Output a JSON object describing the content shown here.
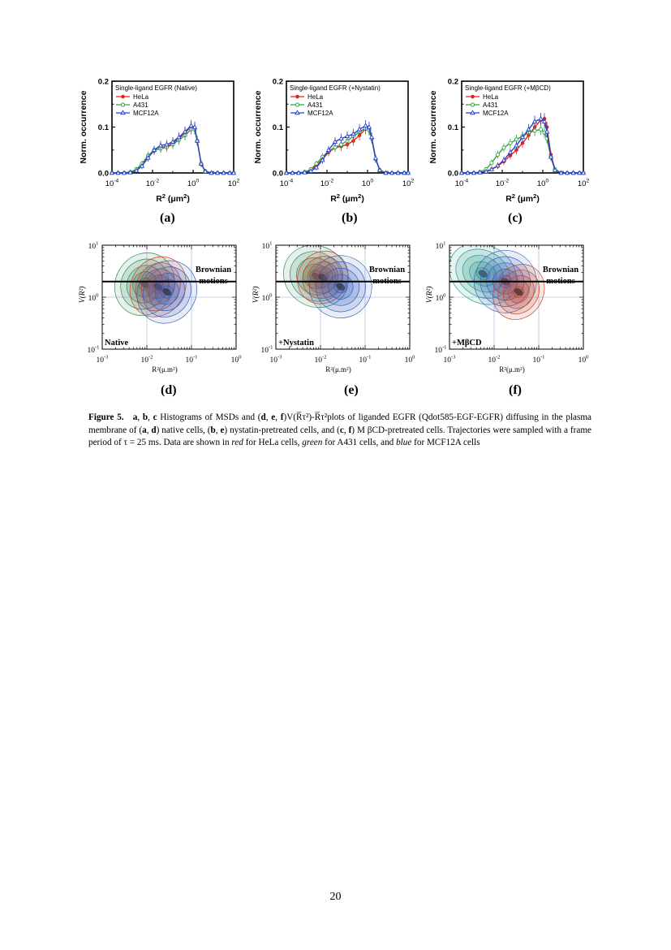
{
  "colors": {
    "hela": "#e0251f",
    "a431": "#2fa23a",
    "mcf12a": "#2840c8"
  },
  "histograms": [
    {
      "panel_label": "(a)",
      "legend_title": "Single-ligand EGFR (Native)"
    },
    {
      "panel_label": "(b)",
      "legend_title": "Single-ligand EGFR (+Nystatin)"
    },
    {
      "panel_label": "(c)",
      "legend_title": "Single-ligand EGFR (+MβCD)"
    }
  ],
  "legend_entries": [
    "HeLa",
    "A431",
    "MCF12A"
  ],
  "hist_axes": {
    "ylabel": "Norm. occurrence",
    "yticks": [
      "0.0",
      "0.1",
      "0.2"
    ],
    "xticks_base": "10",
    "xticks_exp": [
      "-4",
      "-2",
      "0",
      "2"
    ],
    "xlabel_main": "R",
    "xlabel_sup": "2",
    "xlabel_unit": " (μm",
    "xlabel_unit_sup": "2",
    "xlabel_close": ")"
  },
  "contours": [
    {
      "panel_label": "(d)",
      "condition_label": "Native"
    },
    {
      "panel_label": "(e)",
      "condition_label": "+Nystatin"
    },
    {
      "panel_label": "(f)",
      "condition_label": "+MβCD"
    }
  ],
  "contour_axes": {
    "annotation_line1": "Brownian",
    "annotation_line2": "motions",
    "ylabel": "V(R²)",
    "yticks_base": "10",
    "yticks_exp": [
      "-1",
      "0",
      "1"
    ],
    "xticks_base": "10",
    "xticks_exp": [
      "-3",
      "-2",
      "-1",
      "0"
    ],
    "xlabel": "R²(μ.m²)"
  },
  "chart_data": [
    {
      "type": "line",
      "x": [
        0.0001,
        0.0002,
        0.0004,
        0.0008,
        0.0016,
        0.003,
        0.006,
        0.012,
        0.025,
        0.05,
        0.1,
        0.2,
        0.4,
        0.8,
        1.2,
        1.6,
        2.5,
        4,
        8,
        16,
        32,
        64,
        100
      ],
      "series": [
        {
          "name": "HeLa",
          "values": [
            0,
            0,
            0,
            0.002,
            0.006,
            0.018,
            0.035,
            0.048,
            0.055,
            0.058,
            0.065,
            0.075,
            0.088,
            0.1,
            0.098,
            0.07,
            0.02,
            0.004,
            0,
            0,
            0,
            0,
            0
          ]
        },
        {
          "name": "A431",
          "values": [
            0,
            0,
            0,
            0.002,
            0.008,
            0.02,
            0.038,
            0.05,
            0.053,
            0.056,
            0.062,
            0.072,
            0.082,
            0.095,
            0.095,
            0.07,
            0.02,
            0.004,
            0,
            0,
            0,
            0,
            0
          ]
        },
        {
          "name": "MCF12A",
          "values": [
            0,
            0,
            0,
            0.001,
            0.005,
            0.015,
            0.033,
            0.05,
            0.06,
            0.062,
            0.068,
            0.078,
            0.09,
            0.103,
            0.1,
            0.07,
            0.02,
            0.003,
            0,
            0,
            0,
            0,
            0
          ]
        }
      ],
      "xlabel": "R² (μm²)",
      "ylabel": "Norm. occurrence",
      "ylim": [
        0,
        0.2
      ],
      "xscale": "log",
      "xlim": [
        0.0001,
        100
      ]
    },
    {
      "type": "line",
      "x": [
        0.0001,
        0.0002,
        0.0004,
        0.0008,
        0.0016,
        0.003,
        0.006,
        0.012,
        0.025,
        0.05,
        0.1,
        0.2,
        0.4,
        0.8,
        1.2,
        1.6,
        2.5,
        4,
        8,
        16,
        32,
        64,
        100
      ],
      "series": [
        {
          "name": "HeLa",
          "values": [
            0,
            0,
            0,
            0.002,
            0.006,
            0.016,
            0.03,
            0.045,
            0.055,
            0.058,
            0.062,
            0.07,
            0.082,
            0.096,
            0.093,
            0.075,
            0.03,
            0.006,
            0,
            0,
            0,
            0,
            0
          ]
        },
        {
          "name": "A431",
          "values": [
            0,
            0,
            0,
            0.002,
            0.008,
            0.02,
            0.035,
            0.048,
            0.056,
            0.062,
            0.07,
            0.08,
            0.09,
            0.097,
            0.093,
            0.075,
            0.03,
            0.006,
            0,
            0,
            0,
            0,
            0
          ]
        },
        {
          "name": "MCF12A",
          "values": [
            0,
            0,
            0,
            0.001,
            0.004,
            0.012,
            0.028,
            0.05,
            0.068,
            0.075,
            0.08,
            0.085,
            0.095,
            0.103,
            0.1,
            0.078,
            0.032,
            0.006,
            0,
            0,
            0,
            0,
            0
          ]
        }
      ],
      "xlabel": "R² (μm²)",
      "ylabel": "Norm. occurrence",
      "ylim": [
        0,
        0.2
      ],
      "xscale": "log",
      "xlim": [
        0.0001,
        100
      ]
    },
    {
      "type": "line",
      "x": [
        0.0001,
        0.0002,
        0.0004,
        0.0008,
        0.0016,
        0.003,
        0.006,
        0.012,
        0.025,
        0.05,
        0.1,
        0.2,
        0.4,
        0.8,
        1.2,
        1.6,
        2.5,
        4,
        8,
        16,
        32,
        64,
        100
      ],
      "series": [
        {
          "name": "HeLa",
          "values": [
            0,
            0,
            0,
            0.001,
            0.003,
            0.008,
            0.015,
            0.025,
            0.038,
            0.05,
            0.065,
            0.082,
            0.1,
            0.115,
            0.118,
            0.1,
            0.04,
            0.008,
            0,
            0,
            0,
            0,
            0
          ]
        },
        {
          "name": "A431",
          "values": [
            0,
            0,
            0,
            0.002,
            0.008,
            0.022,
            0.04,
            0.055,
            0.065,
            0.073,
            0.08,
            0.088,
            0.092,
            0.095,
            0.088,
            0.075,
            0.035,
            0.008,
            0,
            0,
            0,
            0,
            0
          ]
        },
        {
          "name": "MCF12A",
          "values": [
            0,
            0,
            0,
            0.001,
            0.003,
            0.008,
            0.016,
            0.028,
            0.045,
            0.06,
            0.078,
            0.095,
            0.112,
            0.118,
            0.112,
            0.09,
            0.035,
            0.006,
            0,
            0,
            0,
            0,
            0
          ]
        }
      ],
      "xlabel": "R² (μm²)",
      "ylabel": "Norm. occurrence",
      "ylim": [
        0,
        0.2
      ],
      "xscale": "log",
      "xlim": [
        0.0001,
        100
      ]
    }
  ],
  "caption": {
    "fig_label": "Figure 5.",
    "p1": "a",
    "p2": "b",
    "p3": "c",
    "t1": " Histograms of MSDs and (",
    "p4": "d",
    "p5": "e",
    "p6": "f",
    "t2": ")V(R̅τ²)-R̅τ²plots of liganded EGFR (Qdot585-EGF-EGFR) diffusing in the plasma membrane of (",
    "p7": "a",
    "p8": "d",
    "t3": ") native cells, (",
    "p9": "b",
    "p10": "e",
    "t4": ") nystatin-pretreated cells, and (",
    "p11": "c",
    "p12": "f",
    "t5": ") M βCD-pretreated cells. Trajectories were sampled with a frame period of τ = 25 ms. Data are shown in ",
    "red": "red",
    "t6": " for HeLa cells, ",
    "green": "green",
    "t7": " for A431 cells, and ",
    "blue": "blue",
    "t8": " for MCF12A cells"
  },
  "page_number": "20"
}
